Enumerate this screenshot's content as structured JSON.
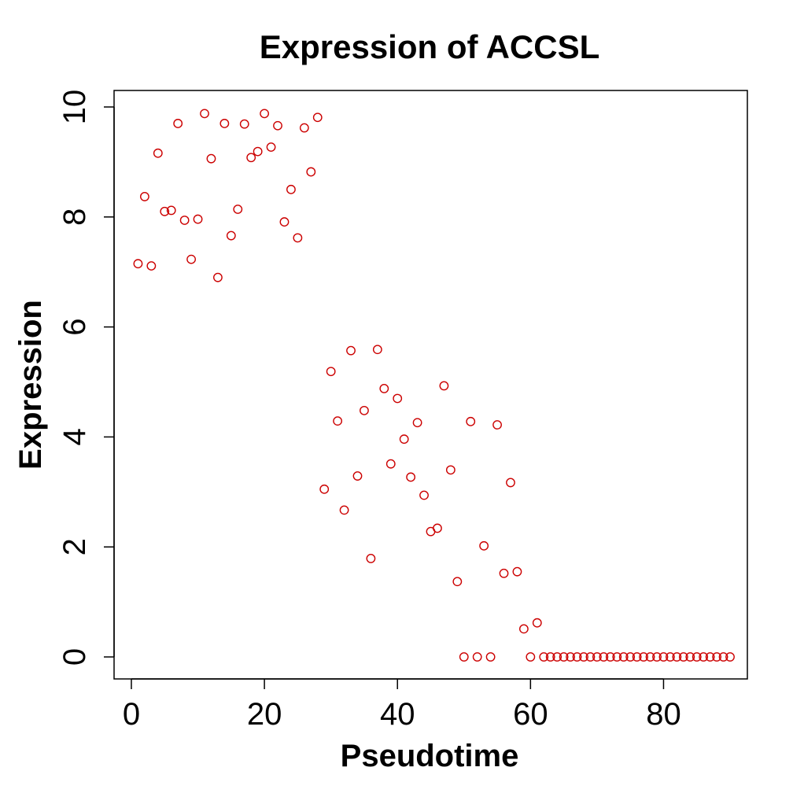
{
  "chart_data": {
    "type": "scatter",
    "title": "Expression of ACCSL",
    "xlabel": "Pseudotime",
    "ylabel": "Expression",
    "xlim": [
      -2.6,
      92.6
    ],
    "ylim": [
      -0.4,
      10.3
    ],
    "xticks": [
      0,
      20,
      40,
      60,
      80
    ],
    "yticks": [
      0,
      2,
      4,
      6,
      8,
      10
    ],
    "xtick_labels": [
      "0",
      "20",
      "40",
      "60",
      "80"
    ],
    "ytick_labels": [
      "0",
      "2",
      "4",
      "6",
      "8",
      "10"
    ],
    "grid": false,
    "marker": "open-circle",
    "color": "#cc0000",
    "series": [
      {
        "x": [
          1,
          2,
          3,
          4,
          5,
          6,
          7,
          8,
          9,
          10,
          11,
          12,
          13,
          14,
          15,
          16,
          17,
          18,
          19,
          20,
          21,
          22,
          23,
          24,
          25,
          26,
          27,
          28,
          29,
          30,
          31,
          32,
          33,
          34,
          35,
          36,
          37,
          38,
          39,
          40,
          41,
          42,
          43,
          44,
          45,
          46,
          47,
          48,
          49,
          50,
          51,
          52,
          53,
          54,
          55,
          56,
          57,
          58,
          59,
          60,
          61,
          62,
          63,
          64,
          65,
          66,
          67,
          68,
          69,
          70,
          71,
          72,
          73,
          74,
          75,
          76,
          77,
          78,
          79,
          80,
          81,
          82,
          83,
          84,
          85,
          86,
          87,
          88,
          89,
          90
        ],
        "y": [
          7.15,
          8.37,
          7.11,
          9.16,
          8.1,
          8.12,
          9.7,
          7.94,
          7.23,
          7.96,
          9.88,
          9.06,
          6.9,
          9.7,
          7.66,
          8.14,
          9.69,
          9.08,
          9.19,
          9.88,
          9.27,
          9.66,
          7.91,
          8.5,
          7.62,
          9.62,
          8.82,
          9.81,
          3.05,
          5.19,
          4.29,
          2.67,
          5.57,
          3.29,
          4.48,
          1.79,
          5.59,
          4.88,
          3.51,
          4.7,
          3.96,
          3.27,
          4.26,
          2.94,
          2.28,
          2.34,
          4.93,
          3.4,
          1.37,
          0,
          4.28,
          0,
          2.02,
          0,
          4.22,
          1.52,
          3.17,
          1.55,
          0.51,
          0,
          0.62,
          0,
          0,
          0,
          0,
          0,
          0,
          0,
          0,
          0,
          0,
          0,
          0,
          0,
          0,
          0,
          0,
          0,
          0,
          0,
          0,
          0,
          0,
          0,
          0,
          0,
          0,
          0,
          0,
          0
        ]
      }
    ]
  }
}
